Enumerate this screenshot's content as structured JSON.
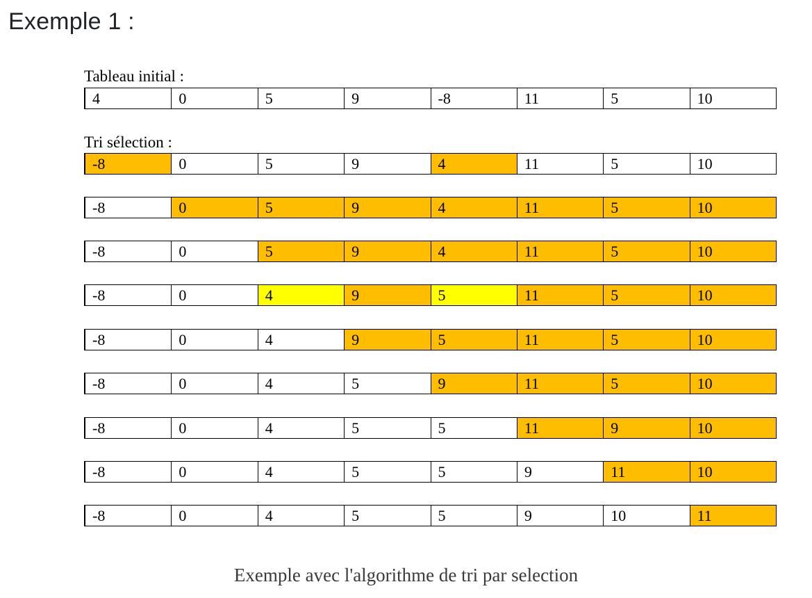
{
  "heading": "Exemple 1 :",
  "initial_label": "Tableau initial :",
  "sort_label": "Tri sélection :",
  "caption": "Exemple avec l'algorithme de tri par selection",
  "colors": {
    "orange": "#ffbd00",
    "yellow": "#ffff00"
  },
  "initial_row": {
    "values": [
      "4",
      "0",
      "5",
      "9",
      "-8",
      "11",
      "5",
      "10"
    ],
    "highlights": [
      "",
      "",
      "",
      "",
      "",
      "",
      "",
      ""
    ]
  },
  "steps": [
    {
      "values": [
        "-8",
        "0",
        "5",
        "9",
        "4",
        "11",
        "5",
        "10"
      ],
      "highlights": [
        "orange",
        "",
        "",
        "",
        "orange",
        "",
        "",
        ""
      ]
    },
    {
      "values": [
        "-8",
        "0",
        "5",
        "9",
        "4",
        "11",
        "5",
        "10"
      ],
      "highlights": [
        "",
        "orange",
        "orange",
        "orange",
        "orange",
        "orange",
        "orange",
        "orange"
      ]
    },
    {
      "values": [
        "-8",
        "0",
        "5",
        "9",
        "4",
        "11",
        "5",
        "10"
      ],
      "highlights": [
        "",
        "",
        "orange",
        "orange",
        "orange",
        "orange",
        "orange",
        "orange"
      ]
    },
    {
      "values": [
        "-8",
        "0",
        "4",
        "9",
        "5",
        "11",
        "5",
        "10"
      ],
      "highlights": [
        "",
        "",
        "yellow",
        "orange",
        "yellow",
        "orange",
        "orange",
        "orange"
      ]
    },
    {
      "values": [
        "-8",
        "0",
        "4",
        "9",
        "5",
        "11",
        "5",
        "10"
      ],
      "highlights": [
        "",
        "",
        "",
        "orange",
        "orange",
        "orange",
        "orange",
        "orange"
      ]
    },
    {
      "values": [
        "-8",
        "0",
        "4",
        "5",
        "9",
        "11",
        "5",
        "10"
      ],
      "highlights": [
        "",
        "",
        "",
        "",
        "orange",
        "orange",
        "orange",
        "orange"
      ]
    },
    {
      "values": [
        "-8",
        "0",
        "4",
        "5",
        "5",
        "11",
        "9",
        "10"
      ],
      "highlights": [
        "",
        "",
        "",
        "",
        "",
        "orange",
        "orange",
        "orange"
      ]
    },
    {
      "values": [
        "-8",
        "0",
        "4",
        "5",
        "5",
        "9",
        "11",
        "10"
      ],
      "highlights": [
        "",
        "",
        "",
        "",
        "",
        "",
        "orange",
        "orange"
      ]
    },
    {
      "values": [
        "-8",
        "0",
        "4",
        "5",
        "5",
        "9",
        "10",
        "11"
      ],
      "highlights": [
        "",
        "",
        "",
        "",
        "",
        "",
        "",
        "orange"
      ]
    }
  ]
}
